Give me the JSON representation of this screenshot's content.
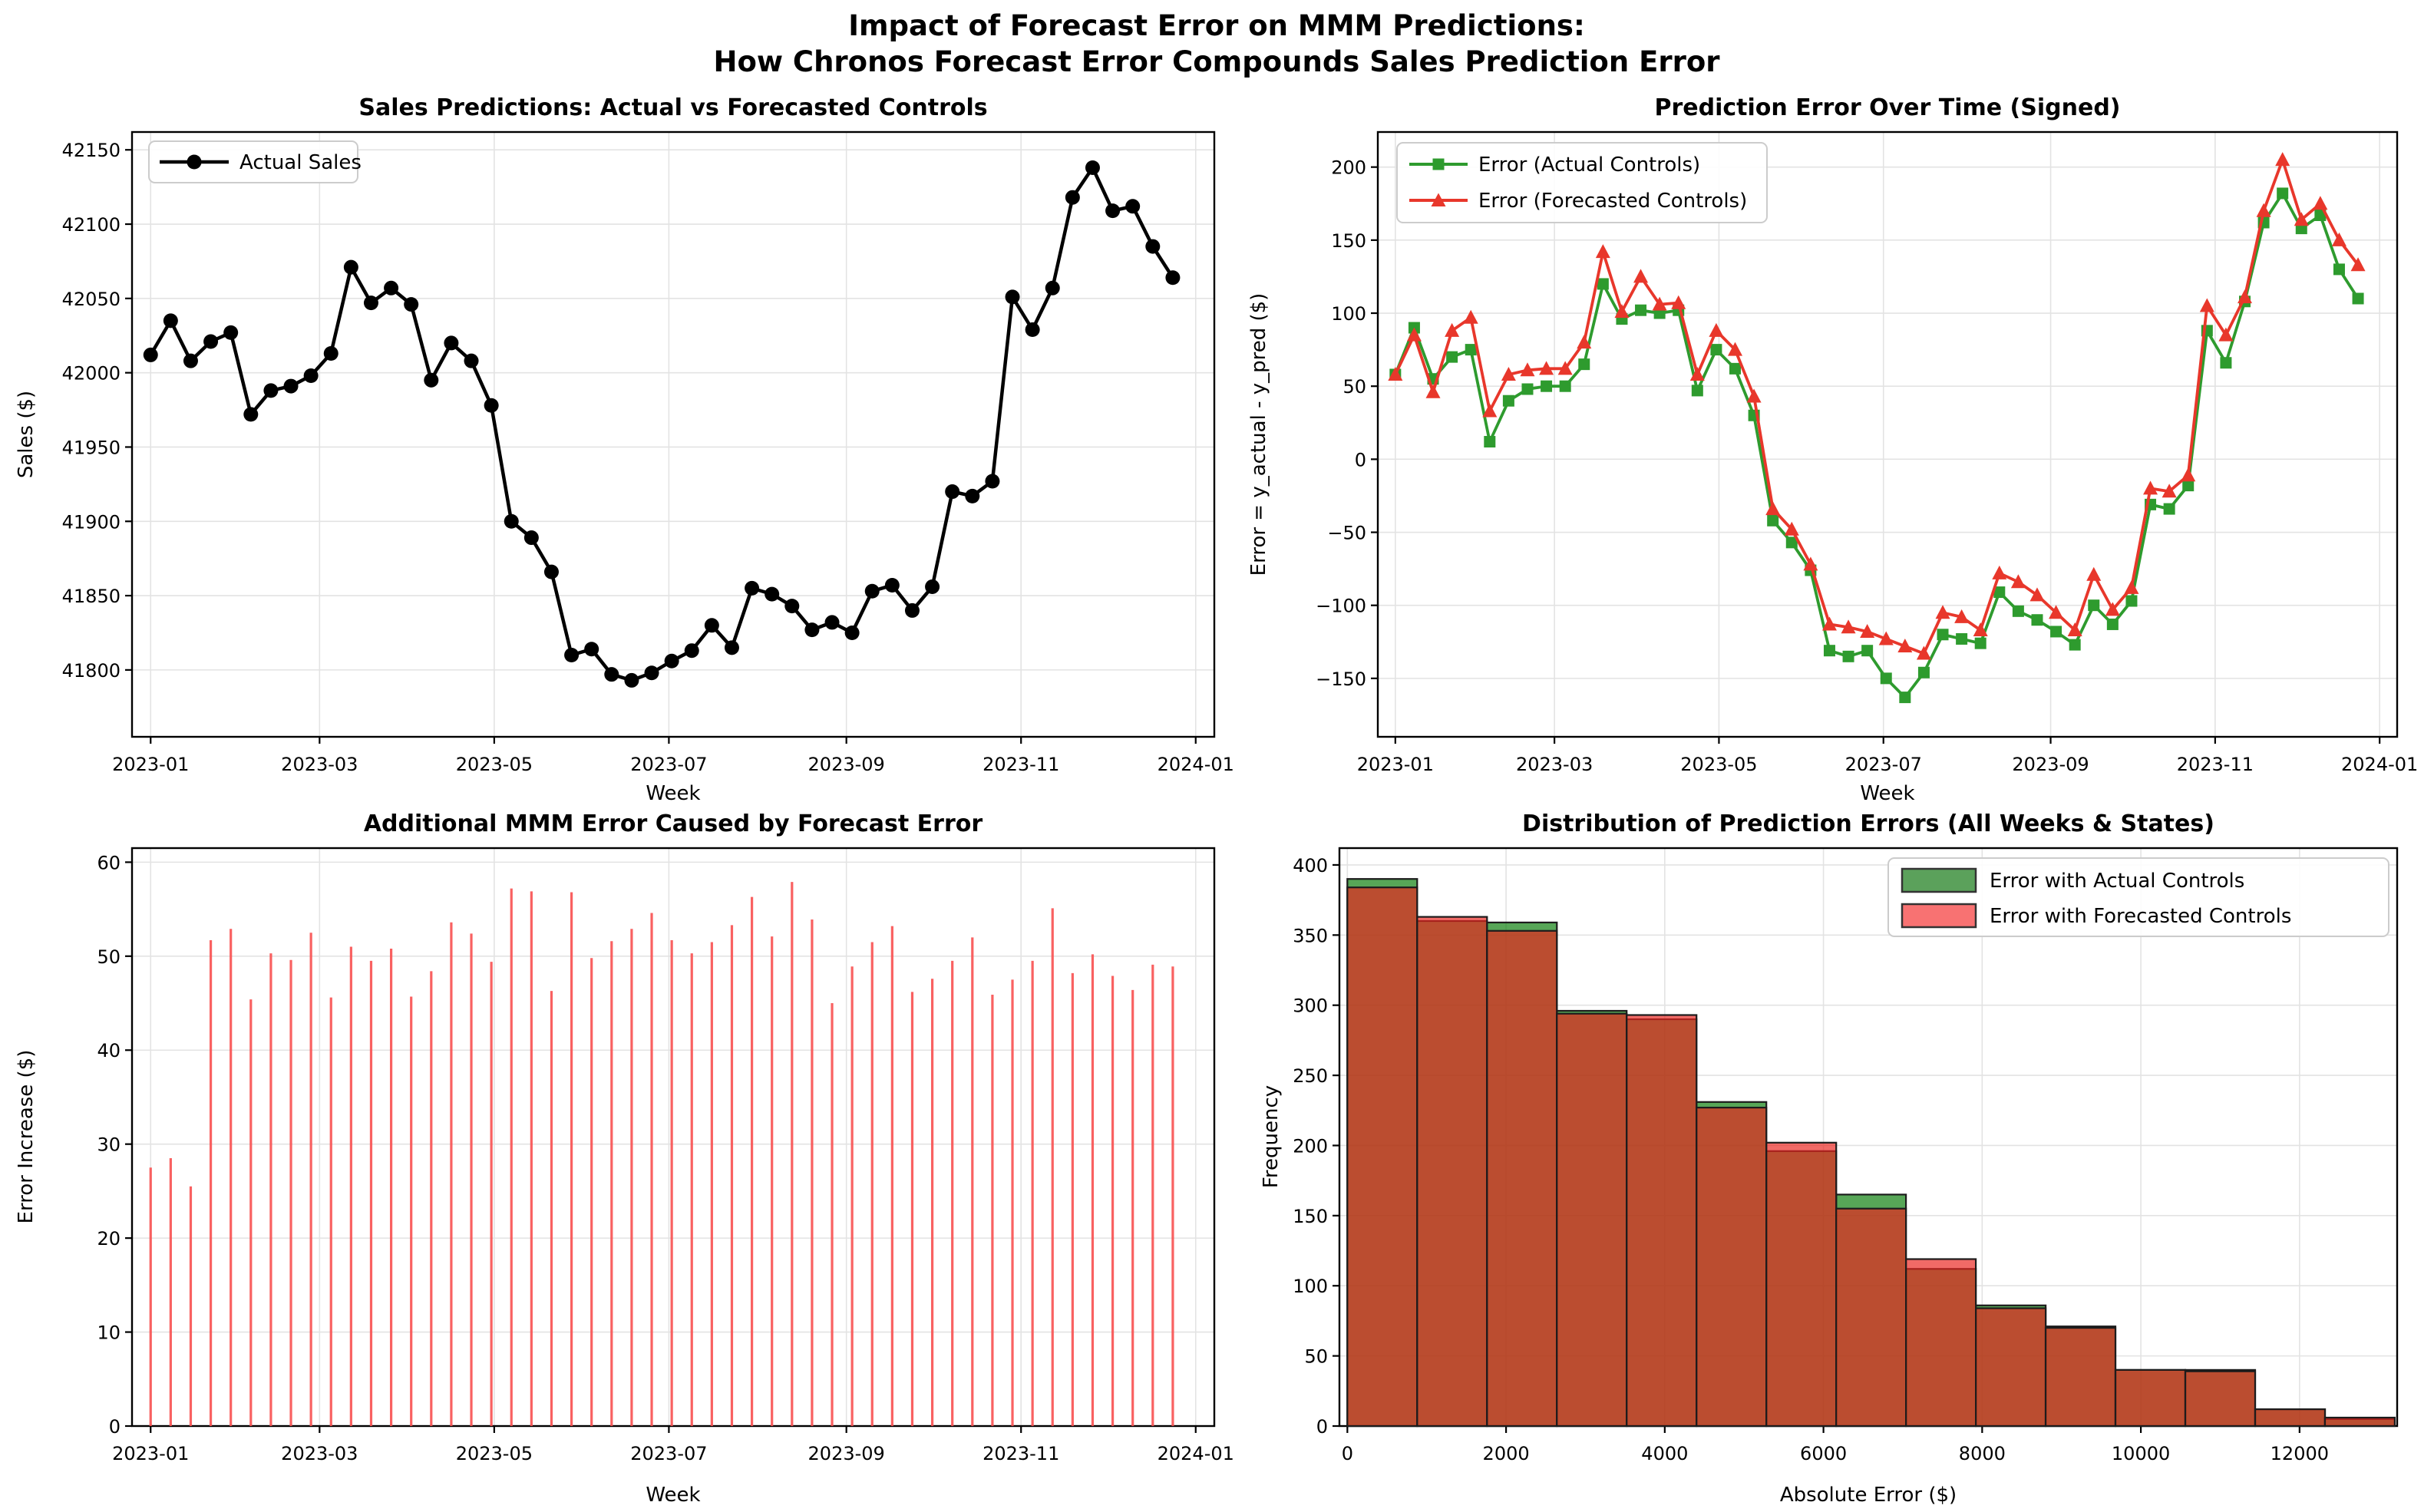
{
  "suptitle": {
    "line1": "Impact of Forecast Error on MMM Predictions:",
    "line2": "How Chronos Forecast Error Compounds Sales Prediction Error"
  },
  "chart_data": [
    {
      "id": "sales",
      "type": "line",
      "title": "Sales Predictions: Actual vs Forecasted Controls",
      "xlabel": "Week",
      "ylabel": "Sales ($)",
      "x_unit": "week",
      "x_start": "2023-01",
      "x_tick_labels": [
        "2023-01",
        "2023-03",
        "2023-05",
        "2023-07",
        "2023-09",
        "2023-11",
        "2024-01"
      ],
      "x_tick_days": [
        0,
        59,
        120,
        181,
        243,
        304,
        365
      ],
      "ylim": [
        41755,
        42162
      ],
      "y_ticks": [
        41800,
        41850,
        41900,
        41950,
        42000,
        42050,
        42100,
        42150
      ],
      "grid": true,
      "legend_loc": "upper left",
      "series": [
        {
          "name": "Actual Sales",
          "color": "#000000",
          "marker": "circle",
          "values": [
            42012,
            42035,
            42008,
            42021,
            42027,
            41972,
            41988,
            41991,
            41998,
            42013,
            42071,
            42047,
            42057,
            42046,
            41995,
            42020,
            42008,
            41978,
            41900,
            41889,
            41866,
            41810,
            41814,
            41797,
            41793,
            41798,
            41806,
            41813,
            41830,
            41815,
            41855,
            41851,
            41843,
            41827,
            41832,
            41825,
            41853,
            41857,
            41840,
            41856,
            41920,
            41917,
            41927,
            42051,
            42029,
            42057,
            42118,
            42138,
            42109,
            42112,
            42085,
            42064
          ]
        }
      ]
    },
    {
      "id": "error",
      "type": "line",
      "title": "Prediction Error Over Time (Signed)",
      "xlabel": "Week",
      "ylabel": "Error = y_actual - y_pred ($)",
      "x_tick_labels": [
        "2023-01",
        "2023-03",
        "2023-05",
        "2023-07",
        "2023-09",
        "2023-11",
        "2024-01"
      ],
      "x_tick_days": [
        0,
        59,
        120,
        181,
        243,
        304,
        365
      ],
      "ylim": [
        -190,
        224
      ],
      "y_ticks": [
        -150,
        -100,
        -50,
        0,
        50,
        100,
        150,
        200
      ],
      "grid": true,
      "legend_loc": "upper left",
      "series": [
        {
          "name": "Error (Actual Controls)",
          "color": "#2e9b2e",
          "marker": "square",
          "values": [
            58,
            90,
            55,
            70,
            75,
            12,
            40,
            48,
            50,
            50,
            65,
            120,
            96,
            102,
            100,
            102,
            47,
            75,
            62,
            30,
            -42,
            -57,
            -76,
            -131,
            -135,
            -131,
            -150,
            -163,
            -146,
            -120,
            -123,
            -126,
            -91,
            -104,
            -110,
            -118,
            -127,
            -100,
            -113,
            -97,
            -31,
            -34,
            -18,
            88,
            66,
            108,
            162,
            182,
            158,
            167,
            130,
            110
          ]
        },
        {
          "name": "Error (Forecasted Controls)",
          "color": "#e8372b",
          "marker": "triangle",
          "values": [
            58,
            85,
            46,
            88,
            97,
            33,
            58,
            61,
            62,
            62,
            80,
            142,
            101,
            125,
            106,
            107,
            58,
            88,
            75,
            43,
            -34,
            -48,
            -72,
            -113,
            -115,
            -118,
            -123,
            -128,
            -133,
            -105,
            -108,
            -117,
            -78,
            -84,
            -93,
            -105,
            -117,
            -79,
            -103,
            -88,
            -20,
            -22,
            -11,
            105,
            85,
            111,
            170,
            205,
            164,
            175,
            150,
            133
          ]
        }
      ]
    },
    {
      "id": "increase",
      "type": "stem",
      "title": "Additional MMM Error Caused by Forecast Error",
      "xlabel": "Week",
      "ylabel": "Error Increase ($)",
      "x_tick_labels": [
        "2023-01",
        "2023-03",
        "2023-05",
        "2023-07",
        "2023-09",
        "2023-11",
        "2024-01"
      ],
      "x_tick_days": [
        0,
        59,
        120,
        181,
        243,
        304,
        365
      ],
      "ylim": [
        0,
        61.5
      ],
      "y_ticks": [
        0,
        10,
        20,
        30,
        40,
        50,
        60
      ],
      "grid": true,
      "color": "#f85050",
      "values": [
        27.5,
        28.5,
        25.5,
        51.7,
        52.9,
        45.4,
        50.3,
        49.6,
        52.5,
        45.6,
        51.0,
        49.5,
        50.8,
        45.7,
        48.4,
        53.6,
        52.4,
        49.4,
        57.2,
        56.9,
        46.3,
        56.8,
        49.8,
        51.6,
        52.9,
        54.6,
        51.7,
        50.3,
        51.5,
        53.3,
        56.3,
        52.1,
        57.9,
        53.9,
        45.0,
        48.9,
        51.5,
        53.2,
        46.2,
        47.6,
        49.5,
        52.0,
        45.9,
        47.5,
        49.5,
        55.1,
        48.2,
        50.2,
        47.9,
        46.4,
        49.1,
        48.9
      ]
    },
    {
      "id": "hist",
      "type": "histogram",
      "title": "Distribution of Prediction Errors (All Weeks & States)",
      "xlabel": "Absolute Error ($)",
      "ylabel": "Frequency",
      "bin_start": 0,
      "bin_width": 880,
      "x_ticks": [
        0,
        2000,
        4000,
        6000,
        8000,
        10000,
        12000
      ],
      "xlim": [
        -100,
        13230
      ],
      "ylim": [
        0,
        412
      ],
      "y_ticks": [
        0,
        50,
        100,
        150,
        200,
        250,
        300,
        350,
        400
      ],
      "grid": true,
      "legend_loc": "upper right",
      "series": [
        {
          "name": "Error with Actual Controls",
          "fill": "#007800",
          "opacity": 0.66,
          "swatch": "#5ba15b",
          "values": [
            390,
            360,
            359,
            296,
            290,
            231,
            196,
            165,
            112,
            86,
            71,
            40,
            40,
            12,
            5
          ]
        },
        {
          "name": "Error with Forecasted Controls",
          "fill": "#eb231e",
          "opacity": 0.68,
          "swatch": "#f87272",
          "values": [
            384,
            363,
            353,
            294,
            293,
            227,
            202,
            155,
            119,
            84,
            70,
            40,
            39,
            12,
            6
          ]
        }
      ]
    }
  ]
}
